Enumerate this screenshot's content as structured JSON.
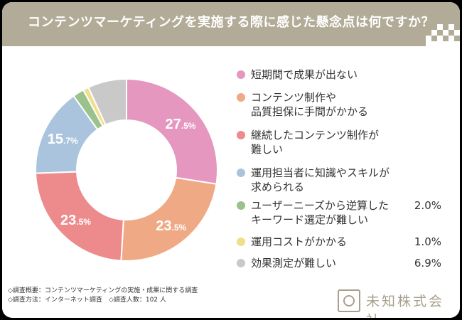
{
  "title": "コンテンツマーケティングを実施する際に感じた懸念点は何ですか？",
  "chart_data": {
    "type": "pie",
    "donut": true,
    "slices": [
      {
        "label": "短期間で成果が出ない",
        "value": 27.5,
        "display": "",
        "color": "#e597bf"
      },
      {
        "label": "コンテンツ制作や品質担保に手間がかかる",
        "value": 23.5,
        "display": "",
        "color": "#efaa85"
      },
      {
        "label": "継続したコンテンツ制作が難しい",
        "value": 23.5,
        "display": "",
        "color": "#ed8b8c"
      },
      {
        "label": "運用担当者に知識やスキルが求められる",
        "value": 15.7,
        "display": "",
        "color": "#a9c4dc"
      },
      {
        "label": "ユーザーニーズから逆算したキーワード選定が難しい",
        "value": 2.0,
        "display": "2.0%",
        "color": "#9cc28b"
      },
      {
        "label": "運用コストがかかる",
        "value": 1.0,
        "display": "1.0%",
        "color": "#f0df8a"
      },
      {
        "label": "効果測定が難しい",
        "value": 6.9,
        "display": "6.9%",
        "color": "#c9c9c9"
      }
    ],
    "legend_lines": [
      [
        "短期間で成果が出ない"
      ],
      [
        "コンテンツ制作や",
        "品質担保に手間がかかる"
      ],
      [
        "継続したコンテンツ制作が",
        "難しい"
      ],
      [
        "運用担当者に知識やスキルが",
        "求められる"
      ],
      [
        "ユーザーニーズから逆算した",
        "キーワード選定が難しい"
      ],
      [
        "運用コストがかかる"
      ],
      [
        "効果測定が難しい"
      ]
    ],
    "inner_labels": [
      {
        "big": "27",
        "small": ".5%"
      },
      {
        "big": "23",
        "small": ".5%"
      },
      {
        "big": "23",
        "small": ".5%"
      },
      {
        "big": "15",
        "small": ".7%"
      }
    ]
  },
  "footer": {
    "line1": "◇調査概要：コンテンツマーケティングの実施・成果に関する調査",
    "line2": "◇調査方法：インターネット調査　◇調査人数：102 人"
  },
  "company": "未知株式会社"
}
